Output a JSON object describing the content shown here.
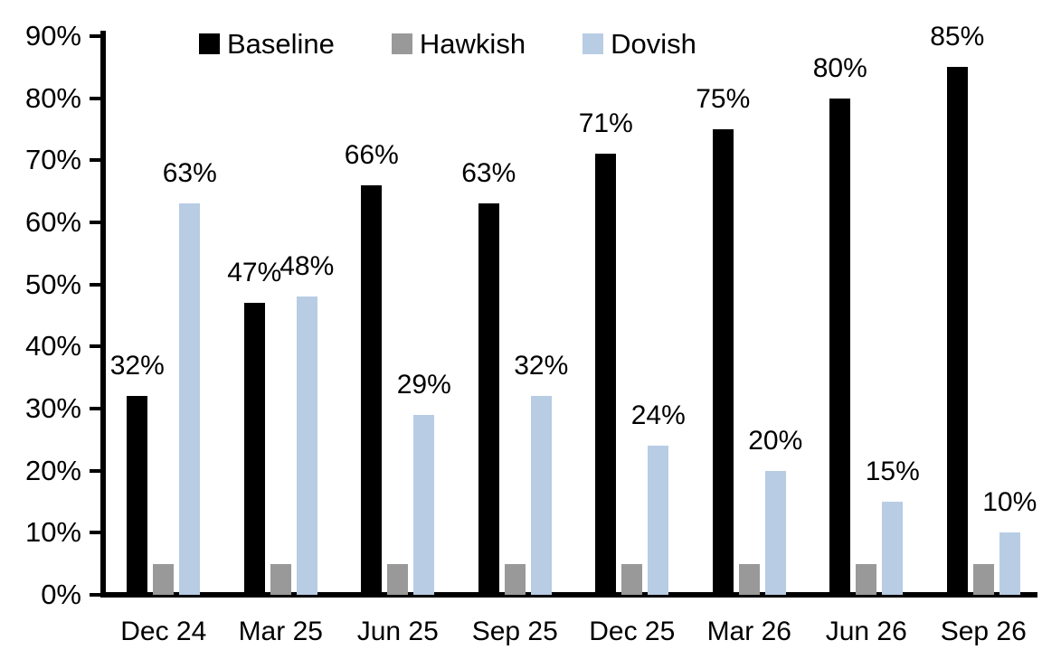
{
  "chart_data": {
    "type": "bar",
    "title": "",
    "categories": [
      "Dec 24",
      "Mar 25",
      "Jun 25",
      "Sep 25",
      "Dec 25",
      "Mar 26",
      "Jun 26",
      "Sep 26"
    ],
    "series": [
      {
        "name": "Baseline",
        "color": "#000000",
        "data_labels": true,
        "values": [
          32,
          47,
          66,
          63,
          71,
          75,
          80,
          85
        ]
      },
      {
        "name": "Hawkish",
        "color": "#999999",
        "data_labels": false,
        "values": [
          5,
          5,
          5,
          5,
          5,
          5,
          5,
          5
        ]
      },
      {
        "name": "Dovish",
        "color": "#b8cce4",
        "data_labels": true,
        "values": [
          63,
          48,
          29,
          32,
          24,
          20,
          15,
          10
        ]
      }
    ],
    "value_suffix": "%",
    "xlabel": "",
    "ylabel": "",
    "ylim": [
      0,
      90
    ],
    "y_ticks": [
      "0%",
      "10%",
      "20%",
      "30%",
      "40%",
      "50%",
      "60%",
      "70%",
      "80%",
      "90%"
    ],
    "grid": false,
    "legend_position": "top",
    "axis_color": "#000000",
    "background_color": "#ffffff"
  }
}
